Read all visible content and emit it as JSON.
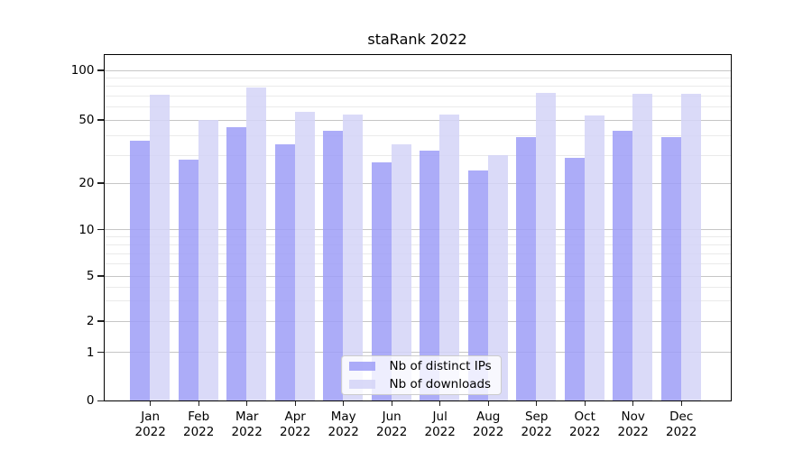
{
  "title": "staRank 2022",
  "legend": {
    "items": [
      {
        "label": "Nb of distinct IPs",
        "color": "rgba(158,158,247,0.85)"
      },
      {
        "label": "Nb of downloads",
        "color": "rgba(211,211,247,0.85)"
      }
    ]
  },
  "axes": {
    "y_tick_labels": [
      "100",
      "50",
      "20",
      "10",
      "5",
      "2",
      "1",
      "0"
    ],
    "y_tick_values": [
      100,
      50,
      20,
      10,
      5,
      2,
      1,
      0
    ],
    "y_minor_values": [
      3,
      4,
      6,
      7,
      8,
      9,
      30,
      40,
      60,
      70,
      80,
      90
    ],
    "x_tick_months": [
      "Jan",
      "Feb",
      "Mar",
      "Apr",
      "May",
      "Jun",
      "Jul",
      "Aug",
      "Sep",
      "Oct",
      "Nov",
      "Dec"
    ],
    "x_tick_year": "2022"
  },
  "colors": {
    "bar_ips": "rgba(158,158,247,0.85)",
    "bar_downloads": "rgba(211,211,247,0.85)",
    "grid_major": "#c6c6c6",
    "grid_minor": "#eaeaea",
    "spine": "#000000",
    "legend_border": "#cccccc",
    "legend_bg": "rgba(255,255,255,0.8)"
  },
  "chart_data": {
    "type": "bar",
    "title": "staRank 2022",
    "categories": [
      "Jan 2022",
      "Feb 2022",
      "Mar 2022",
      "Apr 2022",
      "May 2022",
      "Jun 2022",
      "Jul 2022",
      "Aug 2022",
      "Sep 2022",
      "Oct 2022",
      "Nov 2022",
      "Dec 2022"
    ],
    "series": [
      {
        "name": "Nb of distinct IPs",
        "values": [
          37,
          28,
          45,
          35,
          43,
          27,
          32,
          24,
          39,
          29,
          43,
          39
        ]
      },
      {
        "name": "Nb of downloads",
        "values": [
          71,
          50,
          79,
          56,
          54,
          35,
          54,
          30,
          73,
          53,
          72,
          72
        ]
      }
    ],
    "yscale": "symlog",
    "yticks": [
      0,
      1,
      2,
      5,
      10,
      20,
      50,
      100
    ],
    "ylim": [
      0,
      126
    ],
    "grid": "both",
    "legend_position": "lower center"
  }
}
